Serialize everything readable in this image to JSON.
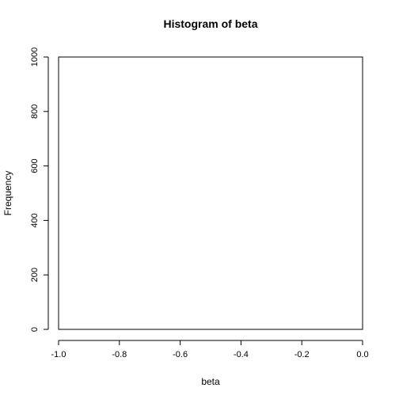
{
  "chart_data": {
    "type": "bar",
    "title": "Histogram of beta",
    "xlabel": "beta",
    "ylabel": "Frequency",
    "xlim": [
      -1.0,
      0.0
    ],
    "ylim": [
      0,
      1000
    ],
    "x_ticks": [
      -1.0,
      -0.8,
      -0.6,
      -0.4,
      -0.2,
      0.0
    ],
    "x_tick_labels": [
      "-1.0",
      "-0.8",
      "-0.6",
      "-0.4",
      "-0.2",
      "0.0"
    ],
    "y_ticks": [
      0,
      200,
      400,
      600,
      800,
      1000
    ],
    "y_tick_labels": [
      "0",
      "200",
      "400",
      "600",
      "800",
      "1000"
    ],
    "bins": [],
    "values": [],
    "grid": false,
    "box": true,
    "colors": {
      "axis": "#000000",
      "frame": "#000000",
      "background": "#ffffff",
      "bar_fill": "#ffffff",
      "bar_stroke": "#000000"
    }
  }
}
